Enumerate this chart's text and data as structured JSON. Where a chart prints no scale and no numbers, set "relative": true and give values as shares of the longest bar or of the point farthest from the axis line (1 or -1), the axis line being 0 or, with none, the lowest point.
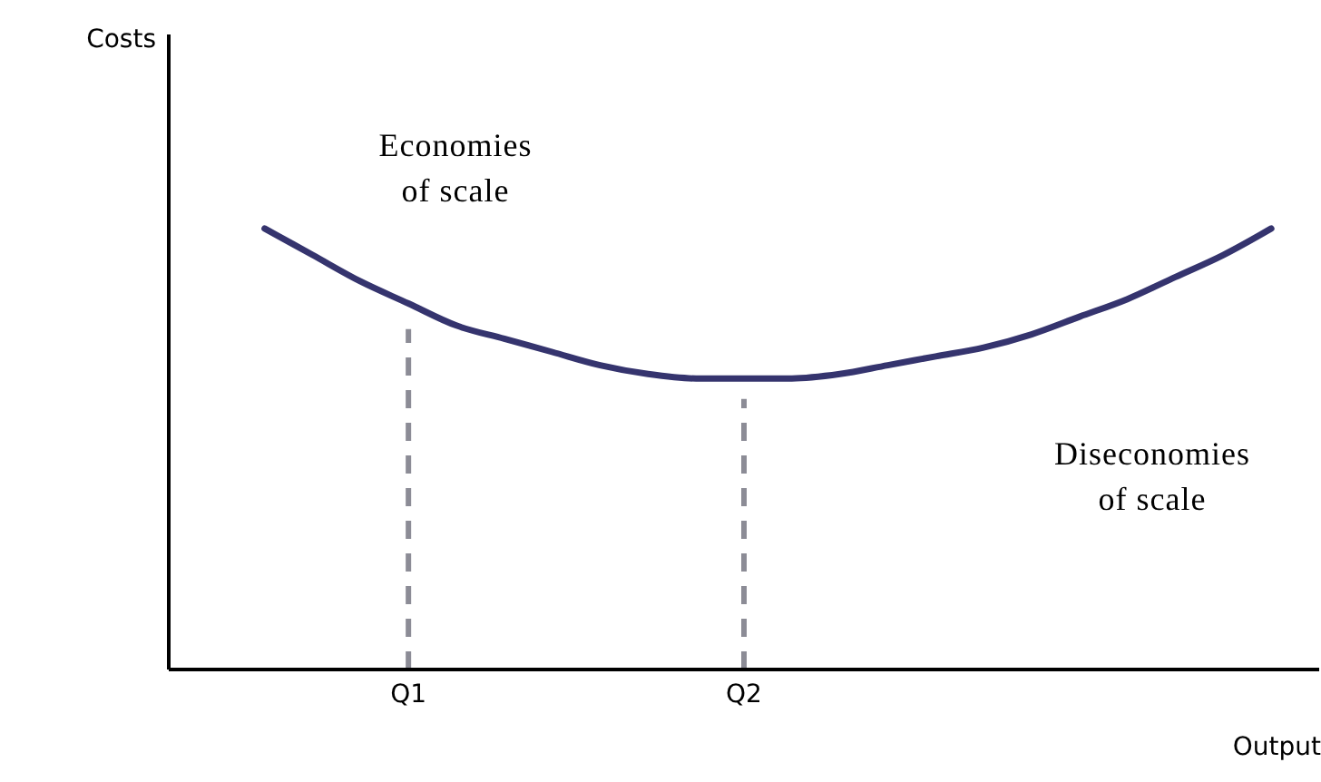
{
  "chart_data": {
    "type": "line",
    "relative": true,
    "xlabel": "Output",
    "categories": [
      null,
      null,
      null,
      null,
      null,
      "Q1",
      null,
      null,
      null,
      null,
      null,
      null,
      "Q2",
      null,
      null,
      null,
      null,
      null,
      null,
      null,
      null,
      null,
      null,
      null,
      null
    ],
    "series": [
      {
        "color": "#35346e",
        "values": [
          null,
          null,
          1.0,
          0.94,
          0.88,
          0.83,
          0.78,
          0.75,
          0.72,
          0.69,
          0.67,
          0.66,
          0.66,
          0.66,
          0.67,
          0.69,
          0.71,
          0.73,
          0.76,
          0.8,
          0.84,
          0.89,
          0.94,
          1.0,
          null
        ]
      }
    ],
    "ref_lines": [
      {
        "axis": "x",
        "value": "Q1",
        "color": "#8c8c96",
        "line_style": "dashed"
      },
      {
        "axis": "x",
        "value": "Q2",
        "color": "#8c8c96",
        "line_style": "dashed"
      }
    ],
    "annotations": [
      "Costs",
      "Economies\nof scale",
      "Diseconomies\nof scale"
    ],
    "grid": false,
    "legend": false,
    "marker": "none",
    "line_style": "solid",
    "tick_labels": "x"
  }
}
